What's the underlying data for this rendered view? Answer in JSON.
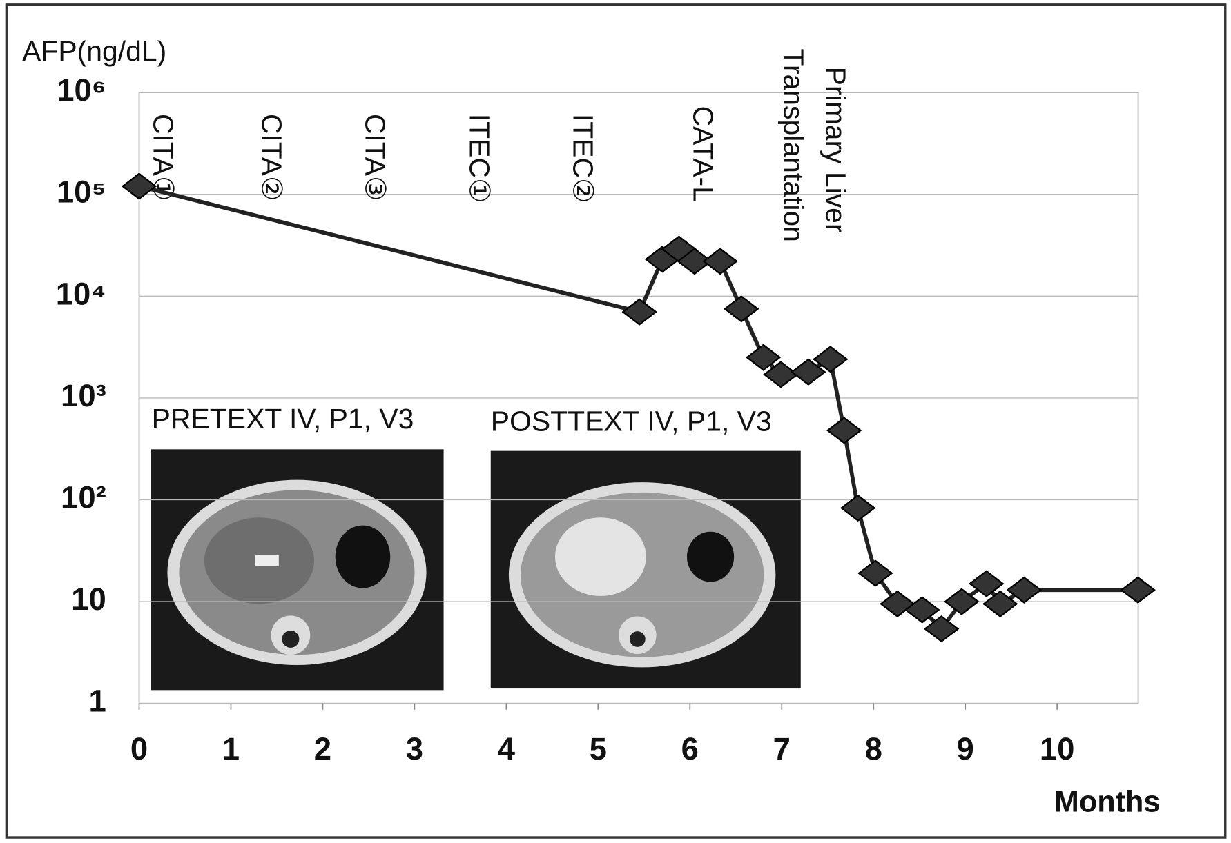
{
  "chart_data": {
    "type": "line",
    "y_label": "AFP(ng/dL)",
    "x_label": "Months",
    "x": [
      0,
      5.45,
      5.7,
      5.88,
      6.05,
      6.33,
      6.56,
      6.8,
      6.99,
      7.29,
      7.53,
      7.68,
      7.83,
      8.02,
      8.26,
      8.53,
      8.74,
      8.96,
      9.23,
      9.38,
      9.64,
      10.88
    ],
    "series": [
      {
        "color": "#333333",
        "values": [
          120000,
          7000,
          23000,
          29000,
          22000,
          22000,
          7500,
          2500,
          1700,
          1800,
          2400,
          480,
          83,
          19,
          9.5,
          8.3,
          5.4,
          10,
          15,
          9.5,
          13,
          13
        ]
      }
    ],
    "xlim": [
      0,
      10.9
    ],
    "xticks": [
      0,
      1,
      2,
      3,
      4,
      5,
      6,
      7,
      8,
      9,
      10
    ],
    "ylim": [
      1,
      1000000
    ],
    "yticks": [
      1,
      10,
      {
        "value": 100,
        "label": "10²"
      },
      {
        "value": 1000,
        "label": "10³"
      },
      {
        "value": 10000,
        "label": "10⁴"
      },
      {
        "value": 100000,
        "label": "10⁵"
      },
      {
        "value": 1000000,
        "label": "10⁶"
      }
    ],
    "log_y": true,
    "grid": true,
    "annotations": [
      "CITA①",
      "CITA②",
      "CITA③",
      "ITEC①",
      "ITEC②",
      "CATA-L",
      "Primary Liver",
      "Transplantation"
    ],
    "image_captions": [
      "PRETEXT IV, P1, V3",
      "POSTTEXT IV, P1, V3"
    ]
  }
}
